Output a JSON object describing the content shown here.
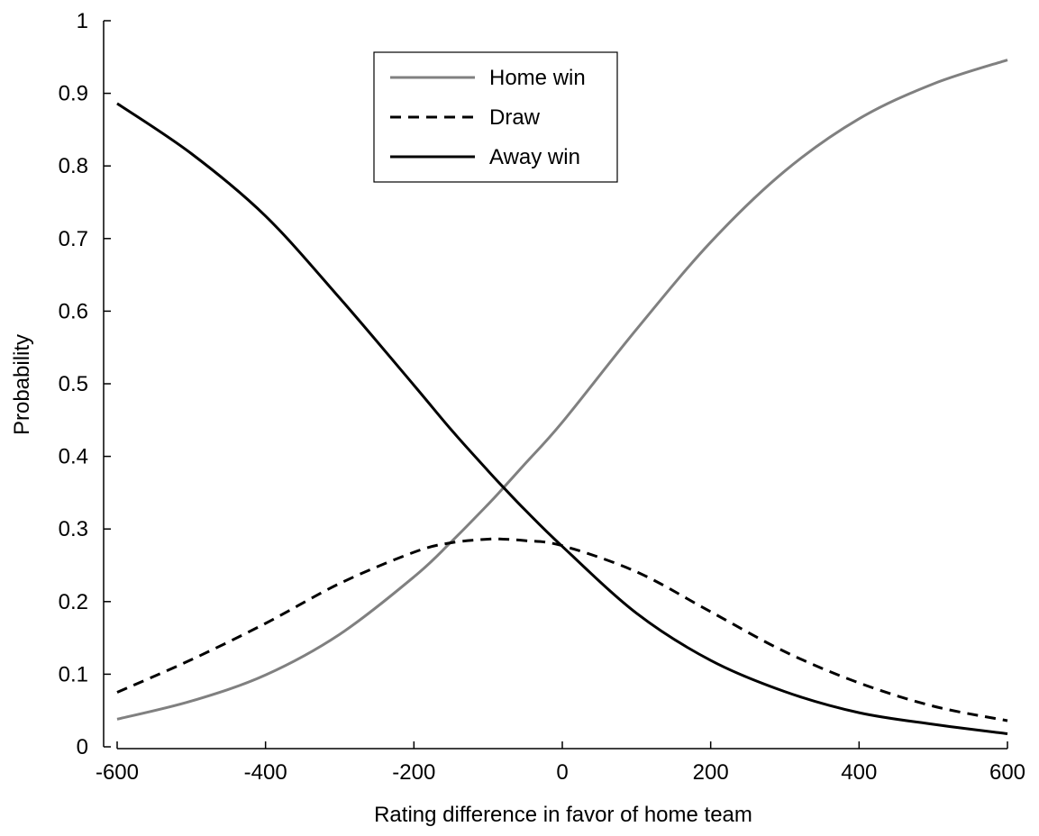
{
  "chart_data": {
    "type": "line",
    "title": "",
    "xlabel": "Rating difference in favor of home team",
    "ylabel": "Probability",
    "xlim": [
      -600,
      600
    ],
    "ylim": [
      0,
      1
    ],
    "x_ticks": [
      -600,
      -400,
      -200,
      0,
      200,
      400,
      600
    ],
    "x_tick_labels": [
      "-600",
      "-400",
      "-200",
      "0",
      "200",
      "400",
      "600"
    ],
    "y_ticks": [
      0,
      0.1,
      0.2,
      0.3,
      0.4,
      0.5,
      0.6,
      0.7,
      0.8,
      0.9,
      1
    ],
    "y_tick_labels": [
      "0",
      "0.1",
      "0.2",
      "0.3",
      "0.4",
      "0.5",
      "0.6",
      "0.7",
      "0.8",
      "0.9",
      "1"
    ],
    "grid": false,
    "legend_position": "top-center",
    "x": [
      -600,
      -500,
      -400,
      -300,
      -200,
      -150,
      -100,
      -80,
      -50,
      0,
      100,
      200,
      300,
      400,
      500,
      600
    ],
    "series": [
      {
        "name": "Home win",
        "color": "#808080",
        "dash": "solid",
        "values": [
          0.038,
          0.063,
          0.099,
          0.155,
          0.234,
          0.282,
          0.334,
          0.356,
          0.39,
          0.447,
          0.575,
          0.695,
          0.793,
          0.865,
          0.913,
          0.946
        ]
      },
      {
        "name": "Draw",
        "color": "#000000",
        "dash": "dashed",
        "values": [
          0.075,
          0.12,
          0.17,
          0.225,
          0.268,
          0.281,
          0.286,
          0.286,
          0.284,
          0.277,
          0.241,
          0.186,
          0.131,
          0.088,
          0.056,
          0.036
        ]
      },
      {
        "name": "Away win",
        "color": "#000000",
        "dash": "solid",
        "values": [
          0.886,
          0.817,
          0.731,
          0.618,
          0.498,
          0.437,
          0.38,
          0.358,
          0.326,
          0.276,
          0.184,
          0.119,
          0.076,
          0.047,
          0.031,
          0.018
        ]
      }
    ]
  }
}
